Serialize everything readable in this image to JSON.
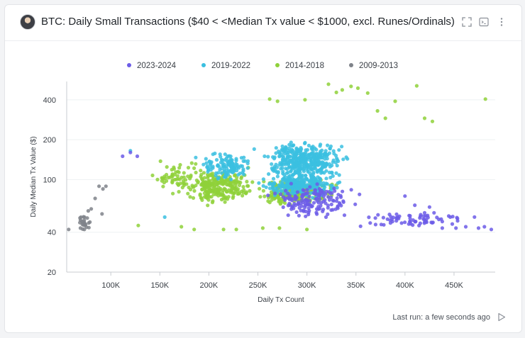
{
  "header": {
    "title": "BTC: Daily Small Transactions ($40 < <Median Tx value < $1000, excl. Runes/Ordinals)",
    "icons": [
      "expand-icon",
      "console-icon",
      "more-vertical-icon"
    ]
  },
  "footer": {
    "last_run": "Last run: a few seconds ago",
    "icon": "play-icon"
  },
  "chart_data": {
    "type": "scatter",
    "xlabel": "Daily Tx Count",
    "ylabel": "Daily Median Tx Value ($)",
    "y_scale": "log",
    "xlim": [
      55000,
      492000
    ],
    "ylim": [
      20,
      550
    ],
    "x_ticks": [
      100000,
      150000,
      200000,
      250000,
      300000,
      350000,
      400000,
      450000
    ],
    "x_tick_labels": [
      "100K",
      "150K",
      "200K",
      "250K",
      "300K",
      "350K",
      "400K",
      "450K"
    ],
    "y_ticks": [
      20,
      40,
      100,
      200,
      400
    ],
    "y_tick_labels": [
      "20",
      "40",
      "100",
      "200",
      "400"
    ],
    "grid": true,
    "legend_position": "top-center",
    "series": [
      {
        "name": "2023-2024",
        "color": "#6c5ce7",
        "clusters": [
          {
            "x": [
              250000,
              360000
            ],
            "y": [
              50,
              95
            ],
            "count": 150
          },
          {
            "x": [
              335000,
              480000
            ],
            "y": [
              41,
              60
            ],
            "count": 70
          }
        ],
        "points": [
          [
            112000,
            150
          ],
          [
            120000,
            160
          ],
          [
            127000,
            150
          ],
          [
            400000,
            75
          ],
          [
            410000,
            64
          ],
          [
            420000,
            56
          ],
          [
            425000,
            62
          ],
          [
            438000,
            43
          ],
          [
            452000,
            43
          ],
          [
            462000,
            44
          ],
          [
            475000,
            43
          ],
          [
            481000,
            44
          ],
          [
            488000,
            42
          ]
        ]
      },
      {
        "name": "2019-2022",
        "color": "#3bbfe0",
        "clusters": [
          {
            "x": [
              245000,
              350000
            ],
            "y": [
              90,
              210
            ],
            "count": 400
          },
          {
            "x": [
              245000,
              340000
            ],
            "y": [
              70,
              115
            ],
            "count": 260
          },
          {
            "x": [
              185000,
              250000
            ],
            "y": [
              95,
              170
            ],
            "count": 120
          }
        ],
        "points": [
          [
            120000,
            165
          ],
          [
            155000,
            52
          ]
        ]
      },
      {
        "name": "2014-2018",
        "color": "#8fd13a",
        "clusters": [
          {
            "x": [
              170000,
              250000
            ],
            "y": [
              62,
              125
            ],
            "count": 260
          },
          {
            "x": [
              240000,
              335000
            ],
            "y": [
              60,
              105
            ],
            "count": 200
          },
          {
            "x": [
              135000,
              200000
            ],
            "y": [
              75,
              145
            ],
            "count": 60
          }
        ],
        "points": [
          [
            262000,
            405
          ],
          [
            270000,
            390
          ],
          [
            298000,
            400
          ],
          [
            322000,
            525
          ],
          [
            330000,
            455
          ],
          [
            336000,
            475
          ],
          [
            345000,
            505
          ],
          [
            352000,
            490
          ],
          [
            362000,
            450
          ],
          [
            372000,
            330
          ],
          [
            380000,
            290
          ],
          [
            390000,
            390
          ],
          [
            412000,
            510
          ],
          [
            420000,
            290
          ],
          [
            428000,
            275
          ],
          [
            482000,
            405
          ],
          [
            128000,
            45
          ],
          [
            172000,
            44
          ],
          [
            185000,
            42
          ],
          [
            215000,
            42
          ],
          [
            228000,
            42
          ],
          [
            255000,
            43
          ],
          [
            272000,
            43
          ],
          [
            300000,
            42
          ]
        ]
      },
      {
        "name": "2009-2013",
        "color": "#7f838a",
        "clusters": [
          {
            "x": [
              66000,
              82000
            ],
            "y": [
              41,
              56
            ],
            "count": 22
          }
        ],
        "points": [
          [
            57000,
            42
          ],
          [
            69000,
            43
          ],
          [
            73000,
            42
          ],
          [
            77000,
            58
          ],
          [
            80000,
            60
          ],
          [
            84000,
            72
          ],
          [
            88000,
            89
          ],
          [
            92000,
            85
          ],
          [
            95000,
            89
          ],
          [
            91000,
            55
          ]
        ]
      }
    ]
  }
}
